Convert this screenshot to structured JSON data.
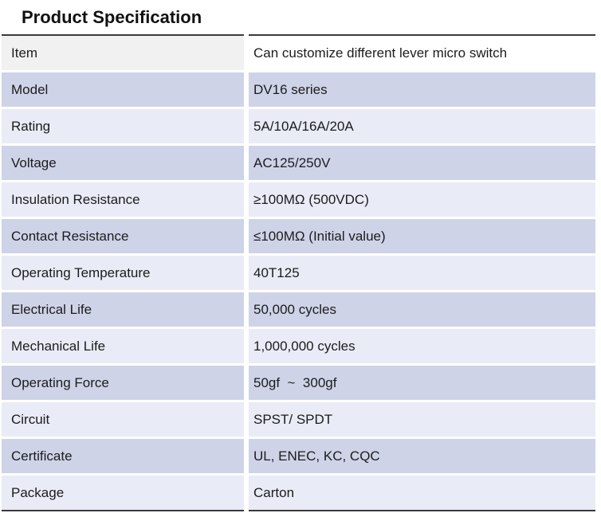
{
  "title": "Product Specification",
  "colors": {
    "row_dark": "#cfd3e8",
    "row_light": "#e9ebf6",
    "header_left": "#f1f1f1",
    "header_right": "#ffffff",
    "border": "#3b3b3b",
    "text": "#1c1c1c"
  },
  "table": {
    "columns": [
      "label",
      "value"
    ],
    "rows": [
      {
        "label": "Item",
        "value": "Can customize different lever micro switch"
      },
      {
        "label": "Model",
        "value": "DV16 series"
      },
      {
        "label": "Rating",
        "value": "5A/10A/16A/20A"
      },
      {
        "label": "Voltage",
        "value": "AC125/250V"
      },
      {
        "label": "Insulation Resistance",
        "value": "≥100MΩ (500VDC)"
      },
      {
        "label": "Contact Resistance",
        "value": "≤100MΩ (Initial value)"
      },
      {
        "label": "Operating Temperature",
        "value": "40T125"
      },
      {
        "label": "Electrical Life",
        "value": "50,000 cycles"
      },
      {
        "label": "Mechanical Life",
        "value": "1,000,000 cycles"
      },
      {
        "label": "Operating Force",
        "value": "50gf  ~  300gf"
      },
      {
        "label": "Circuit",
        "value": "SPST/ SPDT"
      },
      {
        "label": "Certificate",
        "value": "UL, ENEC, KC, CQC"
      },
      {
        "label": "Package",
        "value": "Carton"
      }
    ]
  }
}
